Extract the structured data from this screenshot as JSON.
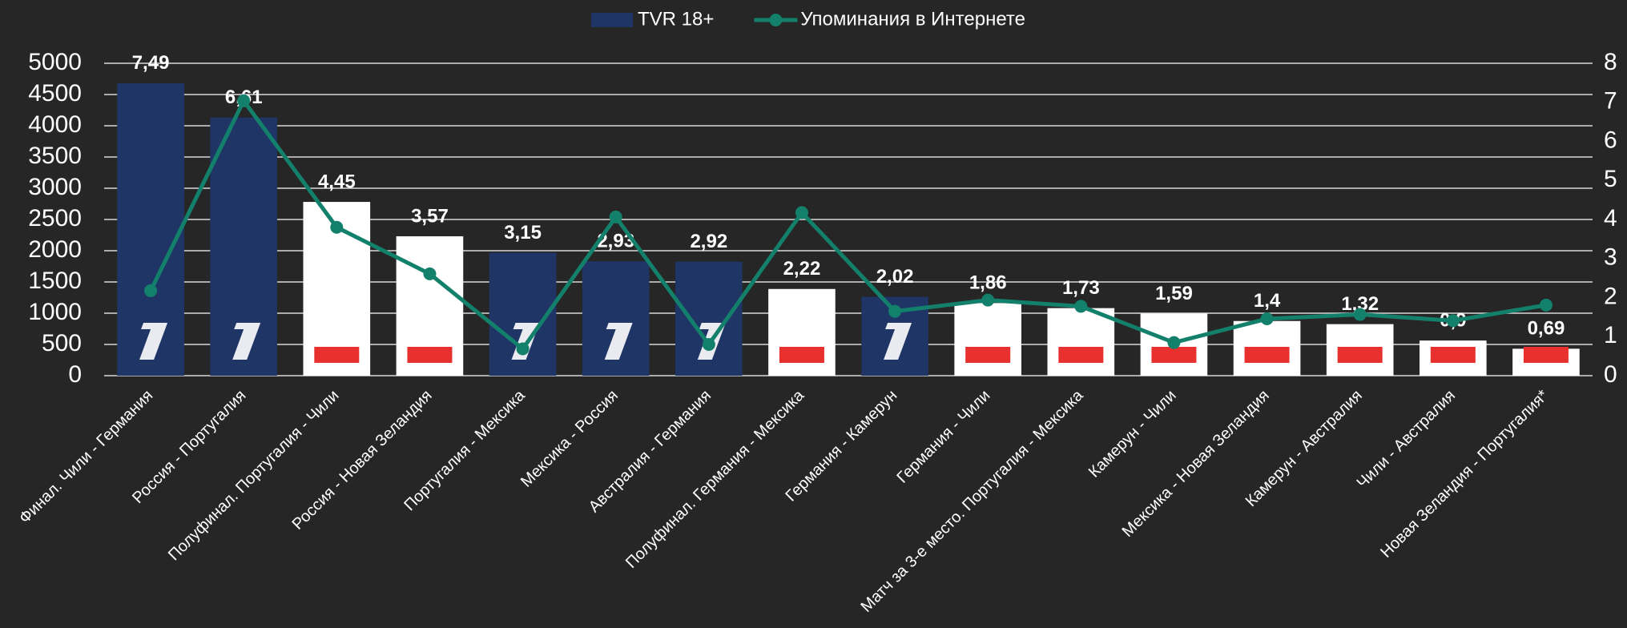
{
  "chart_data": {
    "type": "bar-line",
    "categories": [
      "Финал. Чили - Германия",
      "Россия - Португалия",
      "Полуфинал. Португалия - Чили",
      "Россия - Новая Зеландия",
      "Португалия - Мексика",
      "Мексика - Россия",
      "Австралия - Германия",
      "Полуфинал. Германия - Мексика",
      "Германия - Камерун",
      "Германия - Чили",
      "Матч за 3-е место. Португалия - Мексика",
      "Камерун - Чили",
      "Мексика - Новая Зеландия",
      "Камерун - Австралия",
      "Чили - Австралия",
      "Новая Зеландия - Португалия*"
    ],
    "series": [
      {
        "name": "TVR 18+",
        "type": "bar",
        "axis": "y2",
        "color": "#1f3566",
        "bar_colors": [
          "#1f3566",
          "#1f3566",
          "#ffffff",
          "#ffffff",
          "#1f3566",
          "#1f3566",
          "#1f3566",
          "#ffffff",
          "#1f3566",
          "#ffffff",
          "#ffffff",
          "#ffffff",
          "#ffffff",
          "#ffffff",
          "#ffffff",
          "#ffffff"
        ],
        "values": [
          7.49,
          6.61,
          4.45,
          3.57,
          3.15,
          2.93,
          2.92,
          2.22,
          2.02,
          1.86,
          1.73,
          1.59,
          1.4,
          1.32,
          0.9,
          0.69
        ],
        "value_labels": [
          "7,49",
          "6,61",
          "4,45",
          "3,57",
          "3,15",
          "2,93",
          "2,92",
          "2,22",
          "2,02",
          "1,86",
          "1,73",
          "1,59",
          "1,4",
          "1,32",
          "0,9",
          "0,69"
        ]
      },
      {
        "name": "Упоминания в Интернете",
        "type": "line",
        "color": "#13806b",
        "values": [
          1360,
          4400,
          2375,
          1630,
          430,
          2540,
          500,
          2610,
          1030,
          1210,
          1110,
          530,
          910,
          980,
          880,
          1130
        ]
      }
    ],
    "ylim": [
      0,
      5000
    ],
    "yticks": [
      0,
      500,
      1000,
      1500,
      2000,
      2500,
      3000,
      3500,
      4000,
      4500,
      5000
    ],
    "y2lim": [
      0,
      8
    ],
    "y2ticks": [
      0,
      1,
      2,
      3,
      4,
      5,
      6,
      7,
      8
    ],
    "grid": true,
    "legend": "top"
  }
}
